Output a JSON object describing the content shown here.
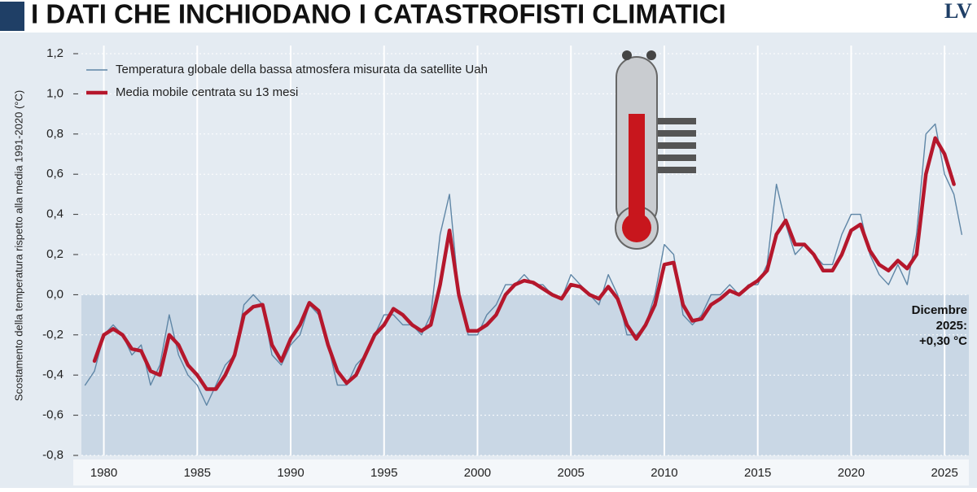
{
  "chart_data": {
    "type": "line",
    "title": "I DATI CHE INCHIODANO I CATASTROFISTI CLIMATICI",
    "logo": "LV",
    "ylabel": "Scostamento della temperatura rispetto alla media 1991-2020 (°C)",
    "annotation": [
      "Dicembre",
      "2025:",
      "+0,30 °C"
    ],
    "xlim": [
      1978.8,
      2026.3
    ],
    "xticks": [
      1980,
      1985,
      1990,
      1995,
      2000,
      2005,
      2010,
      2015,
      2020,
      2025
    ],
    "ylim": [
      -0.8,
      1.2
    ],
    "yticks": [
      {
        "value": -0.8,
        "label": "-0,8"
      },
      {
        "value": -0.6,
        "label": "-0,6"
      },
      {
        "value": -0.4,
        "label": "-0,4"
      },
      {
        "value": -0.2,
        "label": "-0,2"
      },
      {
        "value": 0,
        "label": "0,0"
      },
      {
        "value": 0.2,
        "label": "0,2"
      },
      {
        "value": 0.4,
        "label": "0,4"
      },
      {
        "value": 0.6,
        "label": "0,6"
      },
      {
        "value": 0.8,
        "label": "0,8"
      },
      {
        "value": 1.0,
        "label": "1,0"
      },
      {
        "value": 1.2,
        "label": "1,2"
      }
    ],
    "grid": true,
    "legend": "top-left",
    "x": [
      1979.0,
      1979.5,
      1980.0,
      1980.5,
      1981.0,
      1981.5,
      1982.0,
      1982.5,
      1983.0,
      1983.5,
      1984.0,
      1984.5,
      1985.0,
      1985.5,
      1986.0,
      1986.5,
      1987.0,
      1987.5,
      1988.0,
      1988.5,
      1989.0,
      1989.5,
      1990.0,
      1990.5,
      1991.0,
      1991.5,
      1992.0,
      1992.5,
      1993.0,
      1993.5,
      1994.0,
      1994.5,
      1995.0,
      1995.5,
      1996.0,
      1996.5,
      1997.0,
      1997.5,
      1998.0,
      1998.5,
      1999.0,
      1999.5,
      2000.0,
      2000.5,
      2001.0,
      2001.5,
      2002.0,
      2002.5,
      2003.0,
      2003.5,
      2004.0,
      2004.5,
      2005.0,
      2005.5,
      2006.0,
      2006.5,
      2007.0,
      2007.5,
      2008.0,
      2008.5,
      2009.0,
      2009.5,
      2010.0,
      2010.5,
      2011.0,
      2011.5,
      2012.0,
      2012.5,
      2013.0,
      2013.5,
      2014.0,
      2014.5,
      2015.0,
      2015.5,
      2016.0,
      2016.5,
      2017.0,
      2017.5,
      2018.0,
      2018.5,
      2019.0,
      2019.5,
      2020.0,
      2020.5,
      2021.0,
      2021.5,
      2022.0,
      2022.5,
      2023.0,
      2023.5,
      2024.0,
      2024.5,
      2025.0,
      2025.5,
      2025.92
    ],
    "series": [
      {
        "name": "Temperatura globale della bassa atmosfera misurata da satellite Uah",
        "color": "#5f86a6",
        "width": 1.4,
        "values": [
          -0.45,
          -0.38,
          -0.2,
          -0.15,
          -0.2,
          -0.3,
          -0.25,
          -0.45,
          -0.35,
          -0.1,
          -0.3,
          -0.4,
          -0.45,
          -0.55,
          -0.45,
          -0.35,
          -0.3,
          -0.05,
          0.0,
          -0.05,
          -0.3,
          -0.35,
          -0.25,
          -0.2,
          -0.05,
          -0.1,
          -0.25,
          -0.45,
          -0.45,
          -0.35,
          -0.3,
          -0.2,
          -0.1,
          -0.1,
          -0.15,
          -0.15,
          -0.2,
          -0.1,
          0.3,
          0.5,
          0.0,
          -0.2,
          -0.2,
          -0.1,
          -0.05,
          0.05,
          0.05,
          0.1,
          0.05,
          0.05,
          0.0,
          -0.02,
          0.1,
          0.05,
          0.0,
          -0.05,
          0.1,
          0.0,
          -0.2,
          -0.2,
          -0.15,
          0.0,
          0.25,
          0.2,
          -0.1,
          -0.15,
          -0.1,
          0.0,
          0.0,
          0.05,
          0.0,
          0.05,
          0.05,
          0.15,
          0.55,
          0.35,
          0.2,
          0.25,
          0.2,
          0.15,
          0.15,
          0.3,
          0.4,
          0.4,
          0.2,
          0.1,
          0.05,
          0.15,
          0.05,
          0.3,
          0.8,
          0.85,
          0.6,
          0.5,
          0.3
        ]
      },
      {
        "name": "Media mobile centrata su 13 mesi",
        "color": "#b5172c",
        "width": 4.5,
        "values": [
          null,
          -0.33,
          -0.2,
          -0.17,
          -0.2,
          -0.27,
          -0.28,
          -0.38,
          -0.4,
          -0.2,
          -0.25,
          -0.35,
          -0.4,
          -0.47,
          -0.47,
          -0.4,
          -0.3,
          -0.1,
          -0.06,
          -0.05,
          -0.25,
          -0.33,
          -0.22,
          -0.15,
          -0.04,
          -0.08,
          -0.25,
          -0.38,
          -0.44,
          -0.4,
          -0.3,
          -0.2,
          -0.15,
          -0.07,
          -0.1,
          -0.15,
          -0.18,
          -0.15,
          0.05,
          0.32,
          0.0,
          -0.18,
          -0.18,
          -0.15,
          -0.1,
          0.0,
          0.05,
          0.07,
          0.06,
          0.03,
          0.0,
          -0.02,
          0.05,
          0.04,
          0.0,
          -0.02,
          0.04,
          -0.02,
          -0.15,
          -0.22,
          -0.15,
          -0.05,
          0.15,
          0.16,
          -0.05,
          -0.13,
          -0.12,
          -0.05,
          -0.02,
          0.02,
          0.0,
          0.04,
          0.07,
          0.12,
          0.3,
          0.37,
          0.25,
          0.25,
          0.2,
          0.12,
          0.12,
          0.2,
          0.32,
          0.35,
          0.22,
          0.15,
          0.12,
          0.17,
          0.13,
          0.2,
          0.6,
          0.78,
          0.7,
          0.55,
          null
        ]
      }
    ]
  }
}
